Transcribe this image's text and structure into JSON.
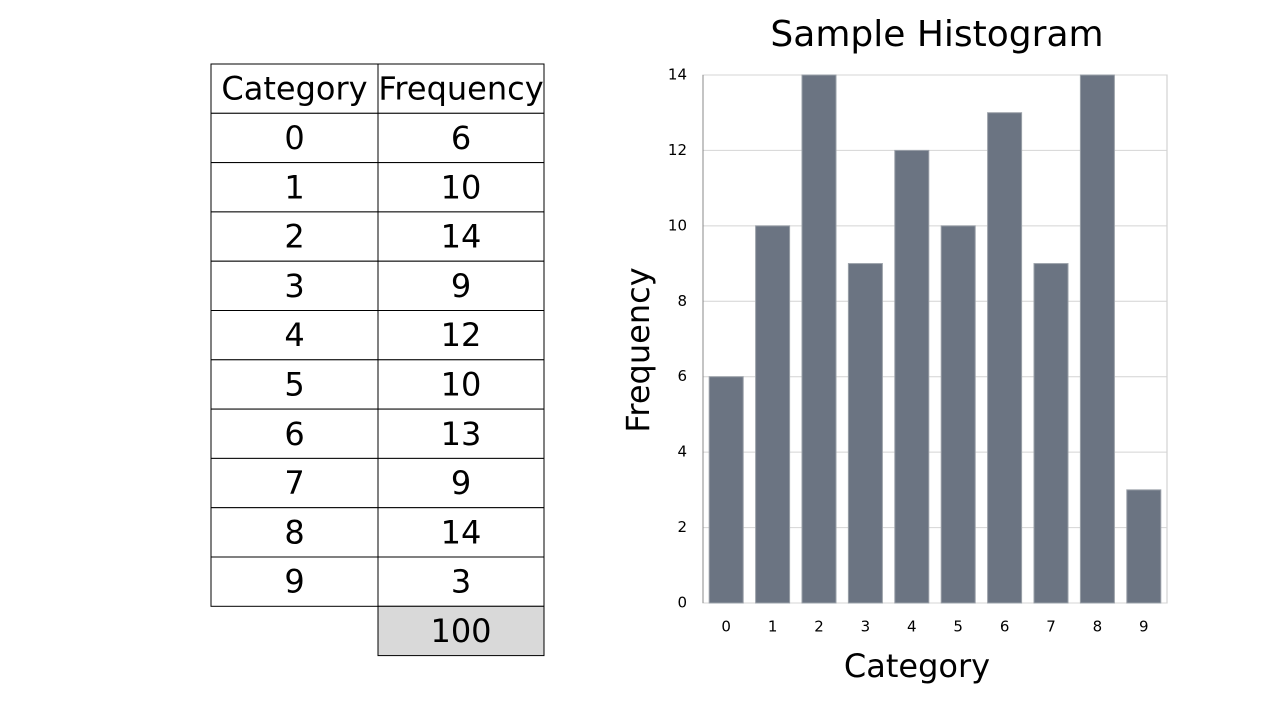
{
  "table": {
    "header": [
      "Category",
      "Frequency"
    ],
    "rows": [
      [
        0,
        6
      ],
      [
        1,
        10
      ],
      [
        2,
        14
      ],
      [
        3,
        9
      ],
      [
        4,
        12
      ],
      [
        5,
        10
      ],
      [
        6,
        13
      ],
      [
        7,
        9
      ],
      [
        8,
        14
      ],
      [
        9,
        3
      ]
    ],
    "total": 100
  },
  "chart_data": {
    "type": "bar",
    "title": "Sample Histogram",
    "x_label": "Category",
    "y_label": "Frequency",
    "categories": [
      "0",
      "1",
      "2",
      "3",
      "4",
      "5",
      "6",
      "7",
      "8",
      "9"
    ],
    "values": [
      6,
      10,
      14,
      9,
      12,
      10,
      13,
      9,
      14,
      3
    ],
    "color": "#6b7482",
    "ylim": [
      0,
      14
    ],
    "yticks": [
      0,
      2,
      4,
      6,
      8,
      10,
      12,
      14
    ],
    "grid": true
  }
}
